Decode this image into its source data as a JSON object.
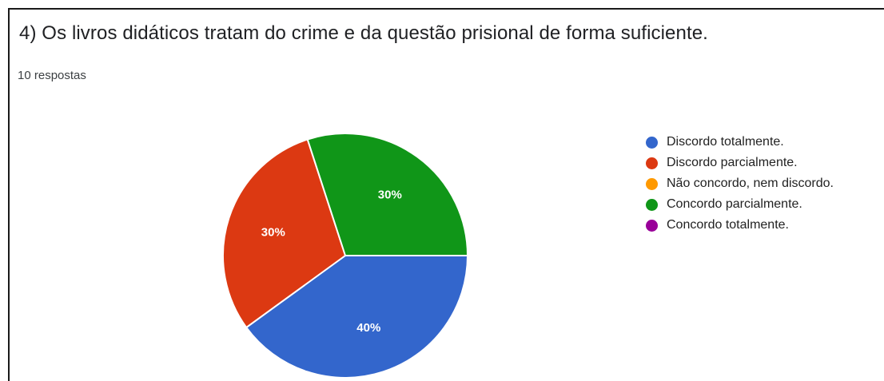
{
  "header": {
    "title": "4) Os livros didáticos tratam do crime e da questão prisional de forma suficiente.",
    "responses": "10 respostas"
  },
  "chart_data": {
    "type": "pie",
    "title": "4) Os livros didáticos tratam do crime e da questão prisional de forma suficiente.",
    "subtitle": "10 respostas",
    "categories": [
      "Discordo totalmente.",
      "Discordo parcialmente.",
      "Não concordo, nem discordo.",
      "Concordo parcialmente.",
      "Concordo totalmente."
    ],
    "values": [
      40,
      30,
      0,
      30,
      0
    ],
    "labels": [
      "40%",
      "30%",
      "",
      "30%",
      ""
    ],
    "colors": [
      "#3366cc",
      "#dc3912",
      "#ff9900",
      "#109618",
      "#990099"
    ],
    "legend_position": "right"
  }
}
